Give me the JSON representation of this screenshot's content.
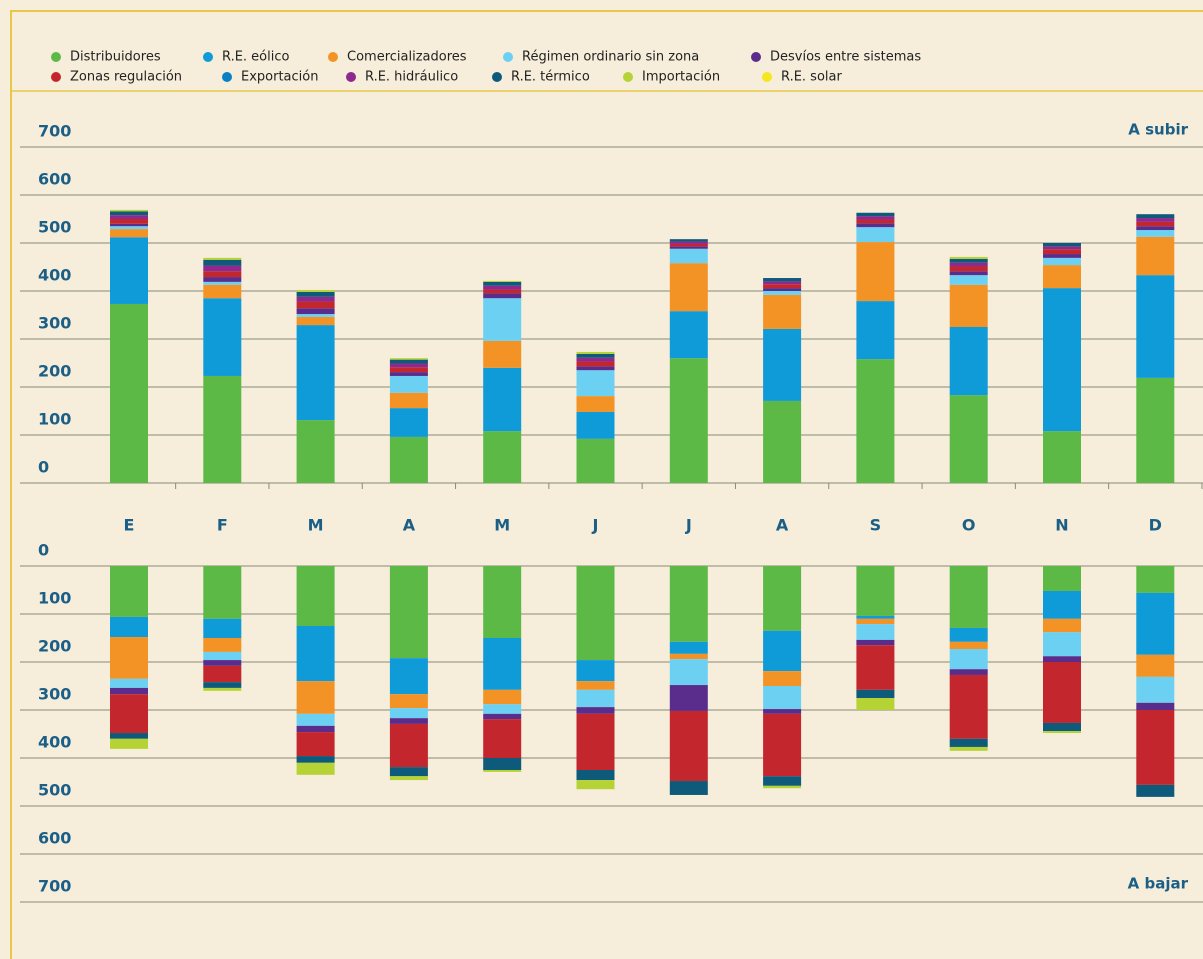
{
  "chart_data": {
    "type": "bar",
    "stacked": true,
    "categories": [
      "E",
      "F",
      "M",
      "A",
      "M",
      "J",
      "J",
      "A",
      "S",
      "O",
      "N",
      "D"
    ],
    "panels": [
      {
        "label": "A subir",
        "ylim": [
          0,
          700
        ],
        "yticks": [
          0,
          100,
          200,
          300,
          400,
          500,
          600,
          700
        ]
      },
      {
        "label": "A bajar",
        "ylim": [
          0,
          700
        ],
        "yticks": [
          0,
          100,
          200,
          300,
          400,
          500,
          600,
          700
        ]
      }
    ],
    "series": [
      {
        "name": "Distribuidores",
        "color": "#5cb946",
        "values": [
          373,
          223,
          131,
          96,
          108,
          92,
          260,
          171,
          258,
          183,
          108,
          219
        ],
        "values_down": [
          106,
          110,
          125,
          192,
          150,
          196,
          158,
          135,
          104,
          129,
          52,
          56
        ]
      },
      {
        "name": "R.E. eólico",
        "color": "#0f9ad8",
        "values": [
          139,
          162,
          198,
          60,
          132,
          56,
          98,
          150,
          121,
          142,
          298,
          214
        ],
        "values_down": [
          42,
          40,
          115,
          75,
          108,
          44,
          25,
          84,
          6,
          29,
          58,
          129
        ]
      },
      {
        "name": "Comercializadores",
        "color": "#f39325",
        "values": [
          17,
          28,
          17,
          32,
          56,
          33,
          100,
          71,
          123,
          88,
          48,
          80
        ],
        "values_down": [
          87,
          29,
          68,
          29,
          30,
          18,
          11,
          31,
          11,
          15,
          28,
          46
        ]
      },
      {
        "name": "Régimen ordinario sin zona",
        "color": "#6cd0f3",
        "values": [
          6,
          6,
          6,
          35,
          89,
          54,
          30,
          8,
          31,
          20,
          15,
          14
        ],
        "values_down": [
          19,
          17,
          25,
          21,
          20,
          36,
          54,
          48,
          33,
          42,
          50,
          54
        ]
      },
      {
        "name": "Desvíos entre sistemas",
        "color": "#5a2d8c",
        "values": [
          5,
          10,
          12,
          8,
          10,
          8,
          5,
          6,
          8,
          8,
          8,
          8
        ],
        "values_down": [
          13,
          12,
          13,
          12,
          11,
          14,
          54,
          10,
          11,
          12,
          12,
          15
        ]
      },
      {
        "name": "Zonas regulación",
        "color": "#c4262e",
        "values": [
          10,
          12,
          14,
          10,
          8,
          10,
          5,
          8,
          8,
          10,
          10,
          9
        ],
        "values_down": [
          81,
          34,
          50,
          90,
          81,
          117,
          146,
          130,
          93,
          133,
          127,
          156
        ]
      },
      {
        "name": "R.E. hidráulico",
        "color": "#8e2a8e",
        "values": [
          8,
          12,
          10,
          8,
          8,
          8,
          5,
          6,
          7,
          8,
          6,
          8
        ],
        "values_down": [
          0,
          0,
          0,
          0,
          0,
          0,
          0,
          0,
          0,
          0,
          0,
          0
        ]
      },
      {
        "name": "R.E. térmico",
        "color": "#0d5a7a",
        "values": [
          8,
          12,
          10,
          8,
          8,
          8,
          5,
          7,
          7,
          8,
          7,
          8
        ],
        "values_down": [
          12,
          12,
          14,
          19,
          25,
          21,
          29,
          20,
          17,
          17,
          17,
          25
        ]
      },
      {
        "name": "Importación",
        "color": "#b5d334",
        "values": [
          3,
          4,
          4,
          3,
          2,
          4,
          0,
          0,
          0,
          4,
          0,
          0
        ],
        "values_down": [
          21,
          6,
          25,
          8,
          4,
          19,
          0,
          5,
          25,
          8,
          4,
          0
        ]
      },
      {
        "name": "R.E. solar",
        "color": "#f5e61e",
        "values": [
          0,
          0,
          0,
          0,
          0,
          0,
          0,
          0,
          0,
          0,
          0,
          0
        ],
        "values_down": [
          0,
          0,
          0,
          0,
          0,
          0,
          0,
          0,
          0,
          0,
          0,
          0
        ]
      },
      {
        "name": "Exportación",
        "color": "#0a7fc4",
        "values": [
          0,
          0,
          0,
          0,
          0,
          0,
          0,
          0,
          0,
          0,
          0,
          0
        ],
        "values_down": [
          0,
          0,
          0,
          0,
          0,
          0,
          0,
          0,
          0,
          0,
          0,
          0
        ]
      }
    ]
  }
}
